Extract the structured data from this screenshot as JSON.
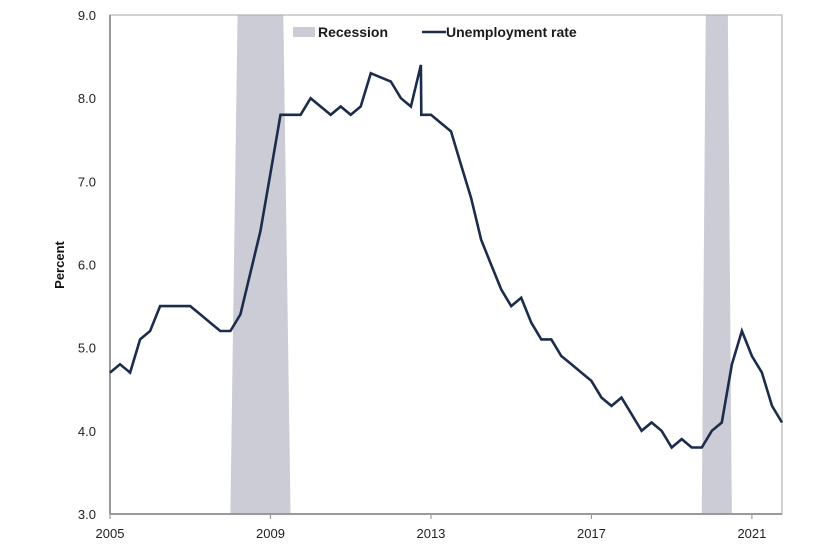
{
  "chart_data": {
    "type": "line",
    "title": "",
    "xlabel": "",
    "ylabel": "Percent",
    "ylim": [
      3.0,
      9.0
    ],
    "xlim": [
      2005,
      2021.75
    ],
    "yticks": [
      "3.0",
      "4.0",
      "5.0",
      "6.0",
      "7.0",
      "8.0",
      "9.0"
    ],
    "xticks": [
      "2005",
      "2009",
      "2013",
      "2017",
      "2021"
    ],
    "grid": false,
    "legend_position": "top-center",
    "legend": [
      {
        "label": "Recession",
        "kind": "area",
        "color": "#cbccd6"
      },
      {
        "label": "Unemployment rate",
        "kind": "line",
        "color": "#1c2c4a"
      }
    ],
    "colors": {
      "line": "#1c2c4a",
      "recession": "#cbccd6",
      "axis": "#9a9a9a"
    },
    "recessions": [
      {
        "label": "Recession",
        "start": 2008.0,
        "end": 2009.5
      },
      {
        "label": "Recession",
        "start": 2019.75,
        "end": 2020.5
      }
    ],
    "series": [
      {
        "name": "Unemployment rate",
        "x": [
          2005.0,
          2005.25,
          2005.5,
          2005.75,
          2006.0,
          2006.25,
          2006.5,
          2006.75,
          2007.0,
          2007.25,
          2007.5,
          2007.75,
          2008.0,
          2008.25,
          2008.5,
          2008.75,
          2009.0,
          2009.25,
          2009.5,
          2009.75,
          2010.0,
          2010.25,
          2010.5,
          2010.75,
          2011.0,
          2011.25,
          2011.5,
          2011.75,
          2012.0,
          2012.25,
          2012.5,
          2012.75,
          2012.76,
          2013.0,
          2013.25,
          2013.5,
          2013.75,
          2014.0,
          2014.25,
          2014.5,
          2014.75,
          2015.0,
          2015.25,
          2015.5,
          2015.75,
          2016.0,
          2016.25,
          2016.5,
          2016.75,
          2017.0,
          2017.25,
          2017.5,
          2017.75,
          2018.0,
          2018.25,
          2018.5,
          2018.75,
          2019.0,
          2019.25,
          2019.5,
          2019.75,
          2020.0,
          2020.25,
          2020.5,
          2020.75,
          2021.0,
          2021.25,
          2021.5,
          2021.75
        ],
        "values": [
          4.7,
          4.8,
          4.7,
          5.1,
          5.2,
          5.5,
          5.5,
          5.5,
          5.5,
          5.4,
          5.3,
          5.2,
          5.2,
          5.4,
          5.9,
          6.4,
          7.1,
          7.8,
          7.8,
          7.8,
          8.0,
          7.9,
          7.8,
          7.9,
          7.8,
          7.9,
          8.3,
          8.25,
          8.2,
          8.0,
          7.9,
          8.4,
          7.8,
          7.8,
          7.7,
          7.6,
          7.2,
          6.8,
          6.3,
          6.0,
          5.7,
          5.5,
          5.6,
          5.3,
          5.1,
          5.1,
          4.9,
          4.8,
          4.7,
          4.6,
          4.4,
          4.3,
          4.4,
          4.2,
          4.0,
          4.1,
          4.0,
          3.8,
          3.9,
          3.8,
          3.8,
          4.0,
          4.1,
          4.8,
          5.2,
          4.9,
          4.7,
          4.3,
          4.1
        ]
      }
    ]
  }
}
